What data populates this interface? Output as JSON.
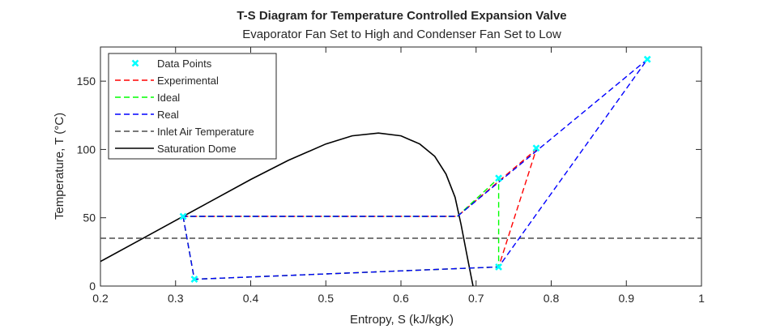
{
  "chart_data": {
    "type": "line",
    "title": "T-S Diagram for Temperature Controlled Expansion Valve",
    "subtitle": "Evaporator Fan Set to High and Condenser Fan Set to Low",
    "xlabel": "Entropy, S (kJ/kgK)",
    "ylabel": "Temperature, T (°C)",
    "xlim": [
      0.2,
      1.0
    ],
    "ylim": [
      0,
      175
    ],
    "xticks": [
      0.2,
      0.3,
      0.4,
      0.5,
      0.6,
      0.7,
      0.8,
      0.9,
      1.0
    ],
    "xtick_labels": [
      "0.2",
      "0.3",
      "0.4",
      "0.5",
      "0.6",
      "0.7",
      "0.8",
      "0.9",
      "1"
    ],
    "yticks": [
      0,
      50,
      100,
      150
    ],
    "ytick_labels": [
      "0",
      "50",
      "100",
      "150"
    ],
    "grid": false,
    "legend_position": "top-left",
    "series": [
      {
        "name": "Data Points",
        "style": "marker",
        "color": "#00FFFF",
        "points": [
          [
            0.31,
            51
          ],
          [
            0.325,
            5
          ],
          [
            0.73,
            14
          ],
          [
            0.73,
            79
          ],
          [
            0.78,
            101
          ],
          [
            0.928,
            166
          ]
        ]
      },
      {
        "name": "Experimental",
        "style": "dashed",
        "color": "#FF0000",
        "points": [
          [
            0.31,
            51
          ],
          [
            0.325,
            5
          ],
          [
            0.73,
            14
          ],
          [
            0.78,
            100
          ],
          [
            0.675,
            51
          ],
          [
            0.31,
            51
          ]
        ]
      },
      {
        "name": "Ideal",
        "style": "dashed",
        "color": "#00FF00",
        "points": [
          [
            0.31,
            51
          ],
          [
            0.325,
            5
          ],
          [
            0.73,
            14
          ],
          [
            0.73,
            79
          ],
          [
            0.675,
            51
          ],
          [
            0.31,
            51
          ]
        ]
      },
      {
        "name": "Real",
        "style": "dashed",
        "color": "#0000FF",
        "points": [
          [
            0.31,
            51
          ],
          [
            0.325,
            5
          ],
          [
            0.73,
            14
          ],
          [
            0.928,
            166
          ],
          [
            0.675,
            51
          ],
          [
            0.31,
            51
          ]
        ]
      },
      {
        "name": "Inlet Air Temperature",
        "style": "dashed",
        "color": "#4D4D4D",
        "points": [
          [
            0.2,
            35
          ],
          [
            1.0,
            35
          ]
        ]
      },
      {
        "name": "Saturation Dome",
        "style": "solid",
        "color": "#000000",
        "points": [
          [
            0.2,
            18
          ],
          [
            0.25,
            33
          ],
          [
            0.3,
            48
          ],
          [
            0.35,
            63
          ],
          [
            0.4,
            78
          ],
          [
            0.45,
            92
          ],
          [
            0.5,
            104
          ],
          [
            0.535,
            110
          ],
          [
            0.57,
            112
          ],
          [
            0.6,
            110
          ],
          [
            0.625,
            104
          ],
          [
            0.645,
            95
          ],
          [
            0.66,
            82
          ],
          [
            0.672,
            65
          ],
          [
            0.68,
            45
          ],
          [
            0.687,
            25
          ],
          [
            0.693,
            8
          ],
          [
            0.696,
            0
          ]
        ]
      }
    ]
  }
}
